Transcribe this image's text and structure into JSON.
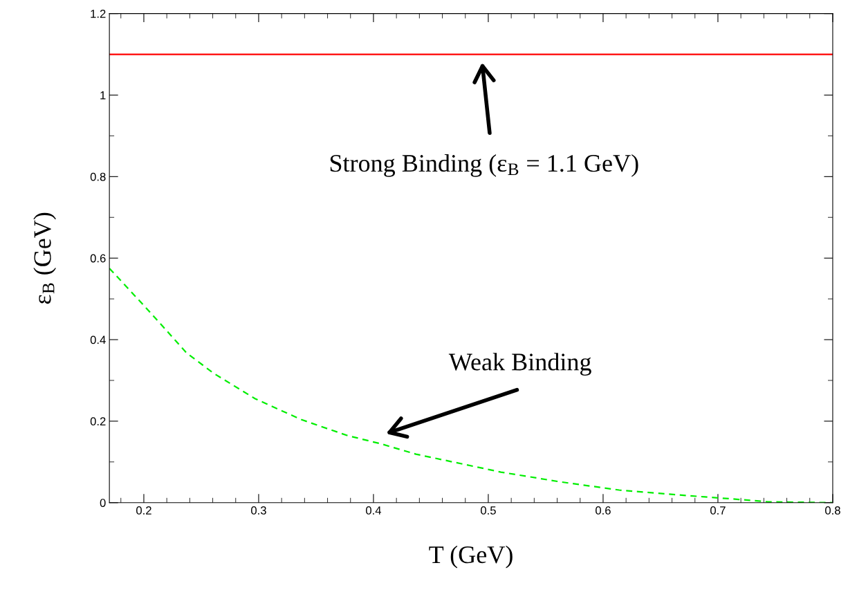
{
  "chart_data": {
    "type": "line",
    "xlabel": "T (GeV)",
    "ylabel": "ε$_{B}$ (GeV)",
    "xlim": [
      0.17,
      0.8
    ],
    "ylim": [
      0,
      1.2
    ],
    "xticks": [
      0.2,
      0.3,
      0.4,
      0.5,
      0.6,
      0.7,
      0.8
    ],
    "yticks": [
      0,
      0.2,
      0.4,
      0.6,
      0.8,
      1,
      1.2
    ],
    "grid": false,
    "series": [
      {
        "color": "#00ee00",
        "line_style": "dashed",
        "x": [
          0.17,
          0.197,
          0.217,
          0.237,
          0.261,
          0.297,
          0.337,
          0.377,
          0.407,
          0.437,
          0.459,
          0.511,
          0.563,
          0.614,
          0.666,
          0.718,
          0.744,
          0.8
        ],
        "values": [
          0.575,
          0.493,
          0.431,
          0.368,
          0.317,
          0.255,
          0.204,
          0.165,
          0.144,
          0.119,
          0.106,
          0.075,
          0.051,
          0.031,
          0.019,
          0.008,
          0.002,
          0
        ]
      }
    ],
    "ref_lines": [
      {
        "axis": "y",
        "value": 1.1,
        "color": "#ff0000",
        "line_style": "solid"
      }
    ],
    "annotations": [
      "Strong Binding (ε$_{B}$ = 1.1 GeV)",
      "Weak Binding"
    ]
  }
}
